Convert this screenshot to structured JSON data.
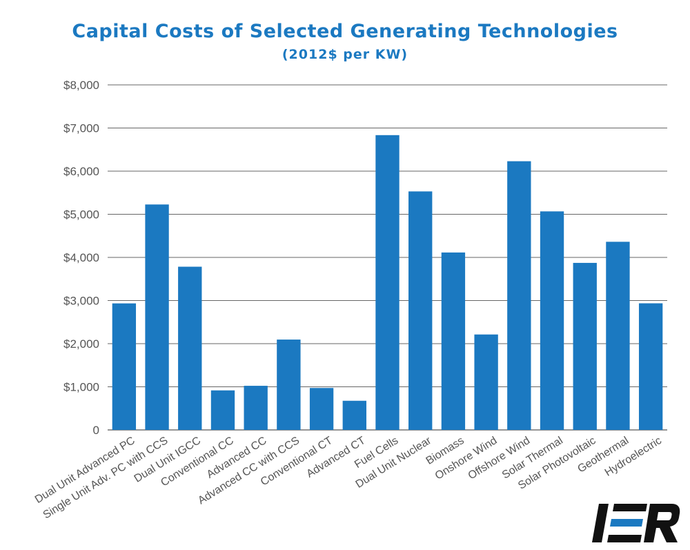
{
  "chart_data": {
    "type": "bar",
    "title": "Capital Costs of Selected Generating Technologies",
    "subtitle": "(2012$ per KW)",
    "xlabel": "",
    "ylabel": "",
    "ylim": [
      0,
      8000
    ],
    "yticks": [
      0,
      1000,
      2000,
      3000,
      4000,
      5000,
      6000,
      7000,
      8000
    ],
    "ytick_labels": [
      "0",
      "$1,000",
      "$2,000",
      "$3,000",
      "$4,000",
      "$5,000",
      "$6,000",
      "$7,000",
      "$8,000"
    ],
    "grid": true,
    "bar_color": "#1b79c1",
    "categories": [
      "Dual Unit Advanced PC",
      "Single Unit Adv. PC with CCS",
      "Dual Unit IGCC",
      "Conventional CC",
      "Advanced CC",
      "Advanced CC with CCS",
      "Conventional CT",
      "Advanced CT",
      "Fuel Cells",
      "Dual Unit Nuclear",
      "Biomass",
      "Onshore Wind",
      "Offshore Wind",
      "Solar Thermal",
      "Solar Photovoltaic",
      "Geothermal",
      "Hydroelectric"
    ],
    "values": [
      2934,
      5227,
      3784,
      917,
      1023,
      2095,
      973,
      676,
      6835,
      5530,
      4114,
      2213,
      6230,
      5067,
      3873,
      4362,
      2936
    ]
  },
  "logo": {
    "text": "IER",
    "color": "#1b79c1"
  }
}
